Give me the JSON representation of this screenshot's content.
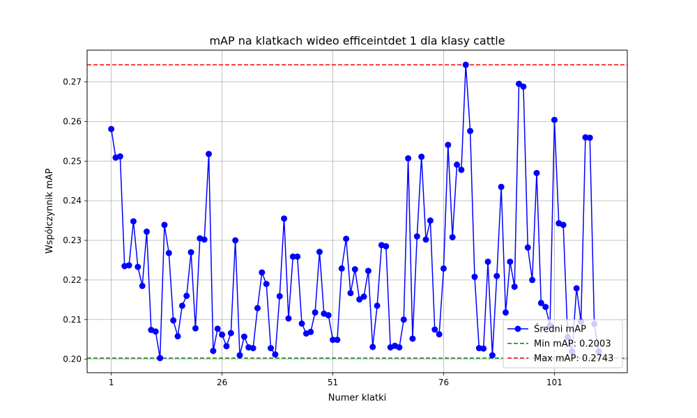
{
  "chart_data": {
    "type": "line",
    "title": "mAP na klatkach wideo efficeintdet 1 dla klasy cattle",
    "xlabel": "Numer klatki",
    "ylabel": "Współczynnik mAP",
    "xlim": [
      -4.45,
      117.45
    ],
    "ylim": [
      0.1966,
      0.278
    ],
    "x_ticks": [
      1,
      26,
      51,
      76,
      101
    ],
    "y_ticks": [
      0.2,
      0.21,
      0.22,
      0.23,
      0.24,
      0.25,
      0.26,
      0.27
    ],
    "y_tick_labels": [
      "0.20",
      "0.21",
      "0.22",
      "0.23",
      "0.24",
      "0.25",
      "0.26",
      "0.27"
    ],
    "grid": true,
    "legend_position": "lower right",
    "series": [
      {
        "name": "Średni mAP",
        "color": "#0000ff",
        "marker": "circle",
        "x_start": 1,
        "values": [
          0.2581,
          0.2509,
          0.2512,
          0.2235,
          0.2237,
          0.2348,
          0.2233,
          0.2185,
          0.2322,
          0.2074,
          0.207,
          0.2003,
          0.2339,
          0.2268,
          0.2098,
          0.2058,
          0.2135,
          0.216,
          0.227,
          0.2078,
          0.2305,
          0.2302,
          0.2518,
          0.2021,
          0.2077,
          0.2062,
          0.2033,
          0.2066,
          0.23,
          0.201,
          0.2057,
          0.203,
          0.2028,
          0.2129,
          0.2219,
          0.219,
          0.2028,
          0.2012,
          0.2159,
          0.2355,
          0.2103,
          0.2259,
          0.2259,
          0.209,
          0.2065,
          0.2069,
          0.2118,
          0.2271,
          0.2115,
          0.2111,
          0.2049,
          0.2049,
          0.2229,
          0.2304,
          0.2167,
          0.2227,
          0.2151,
          0.2158,
          0.2223,
          0.2031,
          0.2135,
          0.2288,
          0.2285,
          0.203,
          0.2034,
          0.203,
          0.21,
          0.2507,
          0.2052,
          0.231,
          0.2511,
          0.2302,
          0.235,
          0.2075,
          0.2063,
          0.2229,
          0.2541,
          0.2308,
          0.2491,
          0.2478,
          0.2743,
          0.2576,
          0.2208,
          0.2028,
          0.2027,
          0.2246,
          0.201,
          0.221,
          0.2435,
          0.2118,
          0.2246,
          0.2183,
          0.2695,
          0.2688,
          0.2282,
          0.22,
          0.247,
          0.2142,
          0.2132,
          0.2085,
          0.2604,
          0.2343,
          0.2339,
          0.2056,
          0.202,
          0.2179,
          0.2095,
          0.256,
          0.2559,
          0.2089,
          0.202
        ]
      },
      {
        "name": "Min mAP: 0.2003",
        "color": "#008000",
        "style": "dashed",
        "value": 0.2003
      },
      {
        "name": "Max mAP: 0.2743",
        "color": "#ff0000",
        "style": "dashed",
        "value": 0.2743
      }
    ]
  }
}
